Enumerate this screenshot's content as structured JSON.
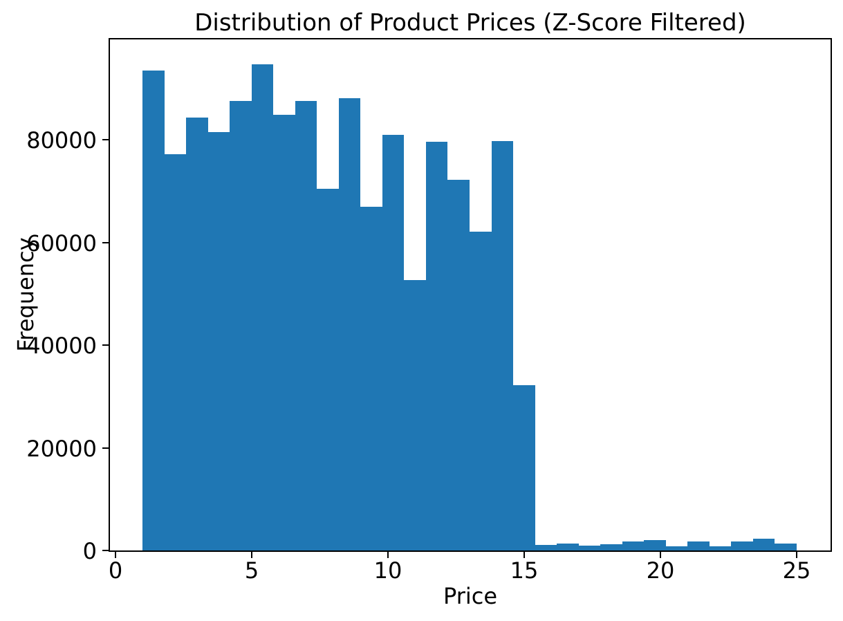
{
  "chart_data": {
    "type": "bar",
    "subtype": "histogram",
    "title": "Distribution of Product Prices (Z-Score Filtered)",
    "xlabel": "Price",
    "ylabel": "Frequency",
    "bar_color": "#1f77b4",
    "background_color": "#ffffff",
    "grid": false,
    "legend": false,
    "xlim": [
      -0.2,
      26.25
    ],
    "ylim": [
      0,
      99530
    ],
    "x_ticks": [
      0,
      5,
      10,
      15,
      20,
      25
    ],
    "x_tick_labels": [
      "0",
      "5",
      "10",
      "15",
      "20",
      "25"
    ],
    "y_ticks": [
      0,
      20000,
      40000,
      60000,
      80000
    ],
    "y_tick_labels": [
      "0",
      "20000",
      "40000",
      "60000",
      "80000"
    ],
    "bin_width": 0.8,
    "bin_edges": [
      1.0,
      1.8,
      2.6,
      3.4,
      4.2,
      5.0,
      5.8,
      6.6,
      7.4,
      8.2,
      9.0,
      9.8,
      10.6,
      11.4,
      12.2,
      13.0,
      13.8,
      14.6,
      15.4,
      16.2,
      17.0,
      17.8,
      18.6,
      19.4,
      20.2,
      21.0,
      21.8,
      22.6,
      23.4,
      24.2,
      25.0
    ],
    "values": [
      93500,
      77200,
      84300,
      81500,
      87500,
      94700,
      84900,
      87600,
      70500,
      88100,
      66900,
      81000,
      52700,
      79600,
      72200,
      62100,
      79700,
      32200,
      1050,
      1350,
      950,
      1200,
      1750,
      2000,
      750,
      1750,
      800,
      1750,
      2300,
      1300
    ]
  }
}
